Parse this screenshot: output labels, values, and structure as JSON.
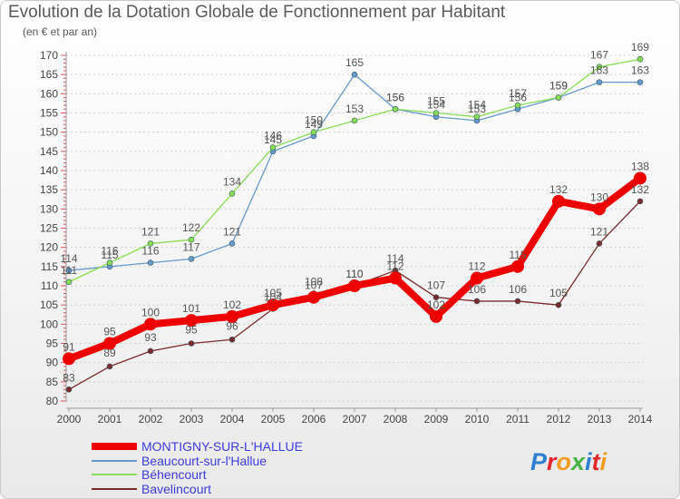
{
  "title": "Evolution de la Dotation Globale de Fonctionnement par Habitant",
  "subtitle": "(en € et par an)",
  "logo_text": "Proxiti",
  "chart_data": {
    "type": "line",
    "title": "Evolution de la Dotation Globale de Fonctionnement par Habitant",
    "subtitle": "(en € et par an)",
    "xlabel": "",
    "ylabel": "",
    "x": [
      2000,
      2001,
      2002,
      2003,
      2004,
      2005,
      2006,
      2007,
      2008,
      2009,
      2010,
      2011,
      2012,
      2013,
      2014
    ],
    "ylim": [
      80,
      170
    ],
    "yticks": [
      80,
      85,
      90,
      95,
      100,
      105,
      110,
      115,
      120,
      125,
      130,
      135,
      140,
      145,
      150,
      155,
      160,
      165,
      170
    ],
    "grid": "horizontal dashed",
    "legend_position": "bottom-left",
    "series": [
      {
        "name": "MONTIGNY-SUR-L'HALLUE",
        "color": "#ee0000",
        "values": [
          91,
          95,
          100,
          101,
          102,
          105,
          107,
          110,
          112,
          102,
          112,
          115,
          132,
          130,
          138
        ]
      },
      {
        "name": "Beaucourt-sur-l'Hallue",
        "color": "#6699cc",
        "values": [
          114,
          115,
          116,
          117,
          121,
          145,
          149,
          165,
          156,
          154,
          153,
          156,
          159,
          163,
          163
        ]
      },
      {
        "name": "Béhencourt",
        "color": "#88dd55",
        "values": [
          111,
          116,
          121,
          122,
          134,
          146,
          150,
          153,
          156,
          155,
          154,
          157,
          159,
          167,
          169
        ]
      },
      {
        "name": "Bavelincourt",
        "color": "#7a2a2a",
        "values": [
          83,
          89,
          93,
          95,
          96,
          104,
          108,
          110,
          114,
          107,
          106,
          106,
          105,
          121,
          132
        ]
      }
    ]
  }
}
